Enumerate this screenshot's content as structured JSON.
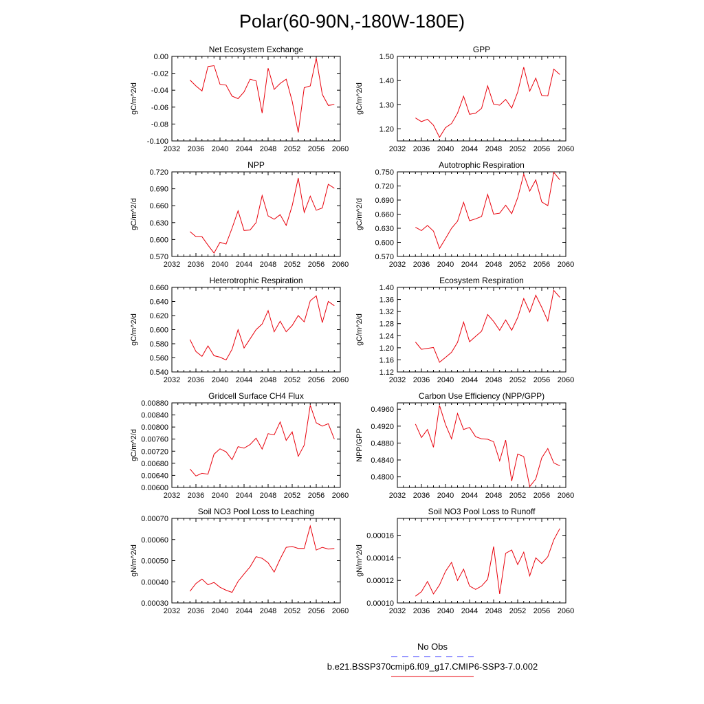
{
  "figure": {
    "title": "Polar(60-90N,-180W-180E)",
    "line_color": "#e8000b",
    "obs_color": "#3333ff"
  },
  "legend": {
    "obs_label": "No Obs",
    "model_label": "b.e21.BSSP370cmip6.f09_g17.CMIP6-SSP3-7.0.002"
  },
  "chart_data": [
    {
      "type": "line",
      "title": "Net Ecosystem Exchange",
      "ylabel": "gC/m^2/d",
      "xlim": [
        2032,
        2060
      ],
      "ylim": [
        -0.1,
        0.0
      ],
      "xticks": [
        "2032",
        "2036",
        "2040",
        "2044",
        "2048",
        "2052",
        "2056",
        "2060"
      ],
      "yticks": [
        "0.00",
        "-0.02",
        "-0.04",
        "-0.06",
        "-0.08",
        "-0.100"
      ],
      "x": [
        2035,
        2036,
        2037,
        2038,
        2039,
        2040,
        2041,
        2042,
        2043,
        2044,
        2045,
        2046,
        2047,
        2048,
        2049,
        2050,
        2051,
        2052,
        2053,
        2054,
        2055,
        2056,
        2057,
        2058,
        2059
      ],
      "y": [
        -0.028,
        -0.035,
        -0.041,
        -0.012,
        -0.011,
        -0.033,
        -0.034,
        -0.047,
        -0.05,
        -0.042,
        -0.027,
        -0.029,
        -0.067,
        -0.014,
        -0.039,
        -0.032,
        -0.027,
        -0.053,
        -0.09,
        -0.037,
        -0.035,
        -0.002,
        -0.045,
        -0.058,
        -0.057
      ]
    },
    {
      "type": "line",
      "title": "GPP",
      "ylabel": "gC/m^2/d",
      "xlim": [
        2032,
        2060
      ],
      "ylim": [
        1.15,
        1.5
      ],
      "xticks": [
        "2032",
        "2036",
        "2040",
        "2044",
        "2048",
        "2052",
        "2056",
        "2060"
      ],
      "yticks": [
        "1.50",
        "1.40",
        "1.30",
        "1.20"
      ],
      "x": [
        2035,
        2036,
        2037,
        2038,
        2039,
        2040,
        2041,
        2042,
        2043,
        2044,
        2045,
        2046,
        2047,
        2048,
        2049,
        2050,
        2051,
        2052,
        2053,
        2054,
        2055,
        2056,
        2057,
        2058,
        2059
      ],
      "y": [
        1.245,
        1.23,
        1.24,
        1.215,
        1.165,
        1.205,
        1.222,
        1.265,
        1.335,
        1.26,
        1.265,
        1.285,
        1.378,
        1.302,
        1.298,
        1.322,
        1.286,
        1.352,
        1.455,
        1.356,
        1.41,
        1.338,
        1.336,
        1.447,
        1.425
      ]
    },
    {
      "type": "line",
      "title": "NPP",
      "ylabel": "gC/m^2/d",
      "xlim": [
        2032,
        2060
      ],
      "ylim": [
        0.57,
        0.72
      ],
      "xticks": [
        "2032",
        "2036",
        "2040",
        "2044",
        "2048",
        "2052",
        "2056",
        "2060"
      ],
      "yticks": [
        "0.720",
        "0.690",
        "0.660",
        "0.630",
        "0.600",
        "0.570"
      ],
      "x": [
        2035,
        2036,
        2037,
        2038,
        2039,
        2040,
        2041,
        2042,
        2043,
        2044,
        2045,
        2046,
        2047,
        2048,
        2049,
        2050,
        2051,
        2052,
        2053,
        2054,
        2055,
        2056,
        2057,
        2058,
        2059
      ],
      "y": [
        0.614,
        0.605,
        0.605,
        0.59,
        0.576,
        0.595,
        0.592,
        0.62,
        0.651,
        0.616,
        0.617,
        0.63,
        0.678,
        0.642,
        0.636,
        0.644,
        0.625,
        0.66,
        0.709,
        0.648,
        0.677,
        0.652,
        0.656,
        0.698,
        0.691
      ]
    },
    {
      "type": "line",
      "title": "Autotrophic Respiration",
      "ylabel": "gC/m^2/d",
      "xlim": [
        2032,
        2060
      ],
      "ylim": [
        0.57,
        0.75
      ],
      "xticks": [
        "2032",
        "2036",
        "2040",
        "2044",
        "2048",
        "2052",
        "2056",
        "2060"
      ],
      "yticks": [
        "0.750",
        "0.720",
        "0.690",
        "0.660",
        "0.630",
        "0.600",
        "0.570"
      ],
      "x": [
        2035,
        2036,
        2037,
        2038,
        2039,
        2040,
        2041,
        2042,
        2043,
        2044,
        2045,
        2046,
        2047,
        2048,
        2049,
        2050,
        2051,
        2052,
        2053,
        2054,
        2055,
        2056,
        2057,
        2058,
        2059
      ],
      "y": [
        0.632,
        0.625,
        0.636,
        0.624,
        0.587,
        0.608,
        0.63,
        0.645,
        0.685,
        0.646,
        0.65,
        0.655,
        0.702,
        0.66,
        0.662,
        0.679,
        0.661,
        0.695,
        0.745,
        0.709,
        0.733,
        0.686,
        0.678,
        0.749,
        0.733
      ]
    },
    {
      "type": "line",
      "title": "Heterotrophic Respiration",
      "ylabel": "gC/m^2/d",
      "xlim": [
        2032,
        2060
      ],
      "ylim": [
        0.54,
        0.66
      ],
      "xticks": [
        "2032",
        "2036",
        "2040",
        "2044",
        "2048",
        "2052",
        "2056",
        "2060"
      ],
      "yticks": [
        "0.660",
        "0.640",
        "0.620",
        "0.600",
        "0.580",
        "0.560",
        "0.540"
      ],
      "x": [
        2035,
        2036,
        2037,
        2038,
        2039,
        2040,
        2041,
        2042,
        2043,
        2044,
        2045,
        2046,
        2047,
        2048,
        2049,
        2050,
        2051,
        2052,
        2053,
        2054,
        2055,
        2056,
        2057,
        2058,
        2059
      ],
      "y": [
        0.586,
        0.569,
        0.562,
        0.577,
        0.563,
        0.561,
        0.557,
        0.572,
        0.6,
        0.574,
        0.587,
        0.6,
        0.608,
        0.627,
        0.597,
        0.612,
        0.597,
        0.606,
        0.62,
        0.611,
        0.641,
        0.648,
        0.61,
        0.64,
        0.634
      ]
    },
    {
      "type": "line",
      "title": "Ecosystem Respiration",
      "ylabel": "gC/m^2/d",
      "xlim": [
        2032,
        2060
      ],
      "ylim": [
        1.12,
        1.4
      ],
      "xticks": [
        "2032",
        "2036",
        "2040",
        "2044",
        "2048",
        "2052",
        "2056",
        "2060"
      ],
      "yticks": [
        "1.40",
        "1.36",
        "1.32",
        "1.28",
        "1.24",
        "1.20",
        "1.16",
        "1.12"
      ],
      "x": [
        2035,
        2036,
        2037,
        2038,
        2039,
        2040,
        2041,
        2042,
        2043,
        2044,
        2045,
        2046,
        2047,
        2048,
        2049,
        2050,
        2051,
        2052,
        2053,
        2054,
        2055,
        2056,
        2057,
        2058,
        2059
      ],
      "y": [
        1.219,
        1.195,
        1.198,
        1.201,
        1.152,
        1.168,
        1.185,
        1.218,
        1.285,
        1.22,
        1.238,
        1.255,
        1.31,
        1.287,
        1.258,
        1.292,
        1.258,
        1.3,
        1.363,
        1.318,
        1.374,
        1.334,
        1.289,
        1.39,
        1.367
      ]
    },
    {
      "type": "line",
      "title": "Gridcell Surface CH4 Flux",
      "ylabel": "gC/m^2/d",
      "xlim": [
        2032,
        2060
      ],
      "ylim": [
        0.006,
        0.0088
      ],
      "xticks": [
        "2032",
        "2036",
        "2040",
        "2044",
        "2048",
        "2052",
        "2056",
        "2060"
      ],
      "yticks": [
        "0.00880",
        "0.00840",
        "0.00800",
        "0.00760",
        "0.00720",
        "0.00680",
        "0.00640",
        "0.00600"
      ],
      "x": [
        2035,
        2036,
        2037,
        2038,
        2039,
        2040,
        2041,
        2042,
        2043,
        2044,
        2045,
        2046,
        2047,
        2048,
        2049,
        2050,
        2051,
        2052,
        2053,
        2054,
        2055,
        2056,
        2057,
        2058,
        2059
      ],
      "y": [
        0.00661,
        0.00638,
        0.00647,
        0.00644,
        0.0071,
        0.00728,
        0.00718,
        0.00692,
        0.00735,
        0.0073,
        0.00742,
        0.00763,
        0.00727,
        0.00778,
        0.00774,
        0.00817,
        0.00756,
        0.00784,
        0.00703,
        0.0074,
        0.00872,
        0.00814,
        0.00803,
        0.00811,
        0.0076
      ]
    },
    {
      "type": "line",
      "title": "Carbon Use Efficiency (NPP/GPP)",
      "ylabel": "NPP/GPP",
      "xlim": [
        2032,
        2060
      ],
      "ylim": [
        0.4775,
        0.4975
      ],
      "xticks": [
        "2032",
        "2036",
        "2040",
        "2044",
        "2048",
        "2052",
        "2056",
        "2060"
      ],
      "yticks": [
        "0.4960",
        "0.4920",
        "0.4880",
        "0.4840",
        "0.4800"
      ],
      "x": [
        2035,
        2036,
        2037,
        2038,
        2039,
        2040,
        2041,
        2042,
        2043,
        2044,
        2045,
        2046,
        2047,
        2048,
        2049,
        2050,
        2051,
        2052,
        2053,
        2054,
        2055,
        2056,
        2057,
        2058,
        2059
      ],
      "y": [
        0.4925,
        0.4893,
        0.4912,
        0.487,
        0.4969,
        0.4924,
        0.489,
        0.495,
        0.4912,
        0.4917,
        0.4895,
        0.489,
        0.4889,
        0.4883,
        0.4838,
        0.4887,
        0.479,
        0.4854,
        0.4848,
        0.4777,
        0.4795,
        0.4845,
        0.4867,
        0.4833,
        0.4826
      ]
    },
    {
      "type": "line",
      "title": "Soil NO3 Pool Loss to Leaching",
      "ylabel": "gN/m^2/d",
      "xlim": [
        2032,
        2060
      ],
      "ylim": [
        0.0003,
        0.0007
      ],
      "xticks": [
        "2032",
        "2036",
        "2040",
        "2044",
        "2048",
        "2052",
        "2056",
        "2060"
      ],
      "yticks": [
        "0.00070",
        "0.00060",
        "0.00050",
        "0.00040",
        "0.00030"
      ],
      "x": [
        2035,
        2036,
        2037,
        2038,
        2039,
        2040,
        2041,
        2042,
        2043,
        2044,
        2045,
        2046,
        2047,
        2048,
        2049,
        2050,
        2051,
        2052,
        2053,
        2054,
        2055,
        2056,
        2057,
        2058,
        2059
      ],
      "y": [
        0.000355,
        0.000392,
        0.000413,
        0.000386,
        0.000397,
        0.000374,
        0.00036,
        0.00035,
        0.000402,
        0.000437,
        0.000471,
        0.000519,
        0.000511,
        0.00049,
        0.000446,
        0.000508,
        0.000563,
        0.000567,
        0.000558,
        0.000558,
        0.000664,
        0.00055,
        0.000563,
        0.000555,
        0.000558
      ]
    },
    {
      "type": "line",
      "title": "Soil NO3 Pool Loss to Runoff",
      "ylabel": "gN/m^2/d",
      "xlim": [
        2032,
        2060
      ],
      "ylim": [
        0.0001,
        0.000175
      ],
      "xticks": [
        "2032",
        "2036",
        "2040",
        "2044",
        "2048",
        "2052",
        "2056",
        "2060"
      ],
      "yticks": [
        "0.00016",
        "0.00014",
        "0.00012",
        "0.00010"
      ],
      "x": [
        2035,
        2036,
        2037,
        2038,
        2039,
        2040,
        2041,
        2042,
        2043,
        2044,
        2045,
        2046,
        2047,
        2048,
        2049,
        2050,
        2051,
        2052,
        2053,
        2054,
        2055,
        2056,
        2057,
        2058,
        2059
      ],
      "y": [
        0.000106,
        0.00011,
        0.000119,
        0.000108,
        0.000116,
        0.000128,
        0.000136,
        0.00012,
        0.00013,
        0.000115,
        0.000112,
        0.000115,
        0.000121,
        0.00015,
        0.000108,
        0.000144,
        0.000147,
        0.000134,
        0.000145,
        0.000124,
        0.00014,
        0.000135,
        0.000141,
        0.000156,
        0.000166
      ]
    }
  ]
}
